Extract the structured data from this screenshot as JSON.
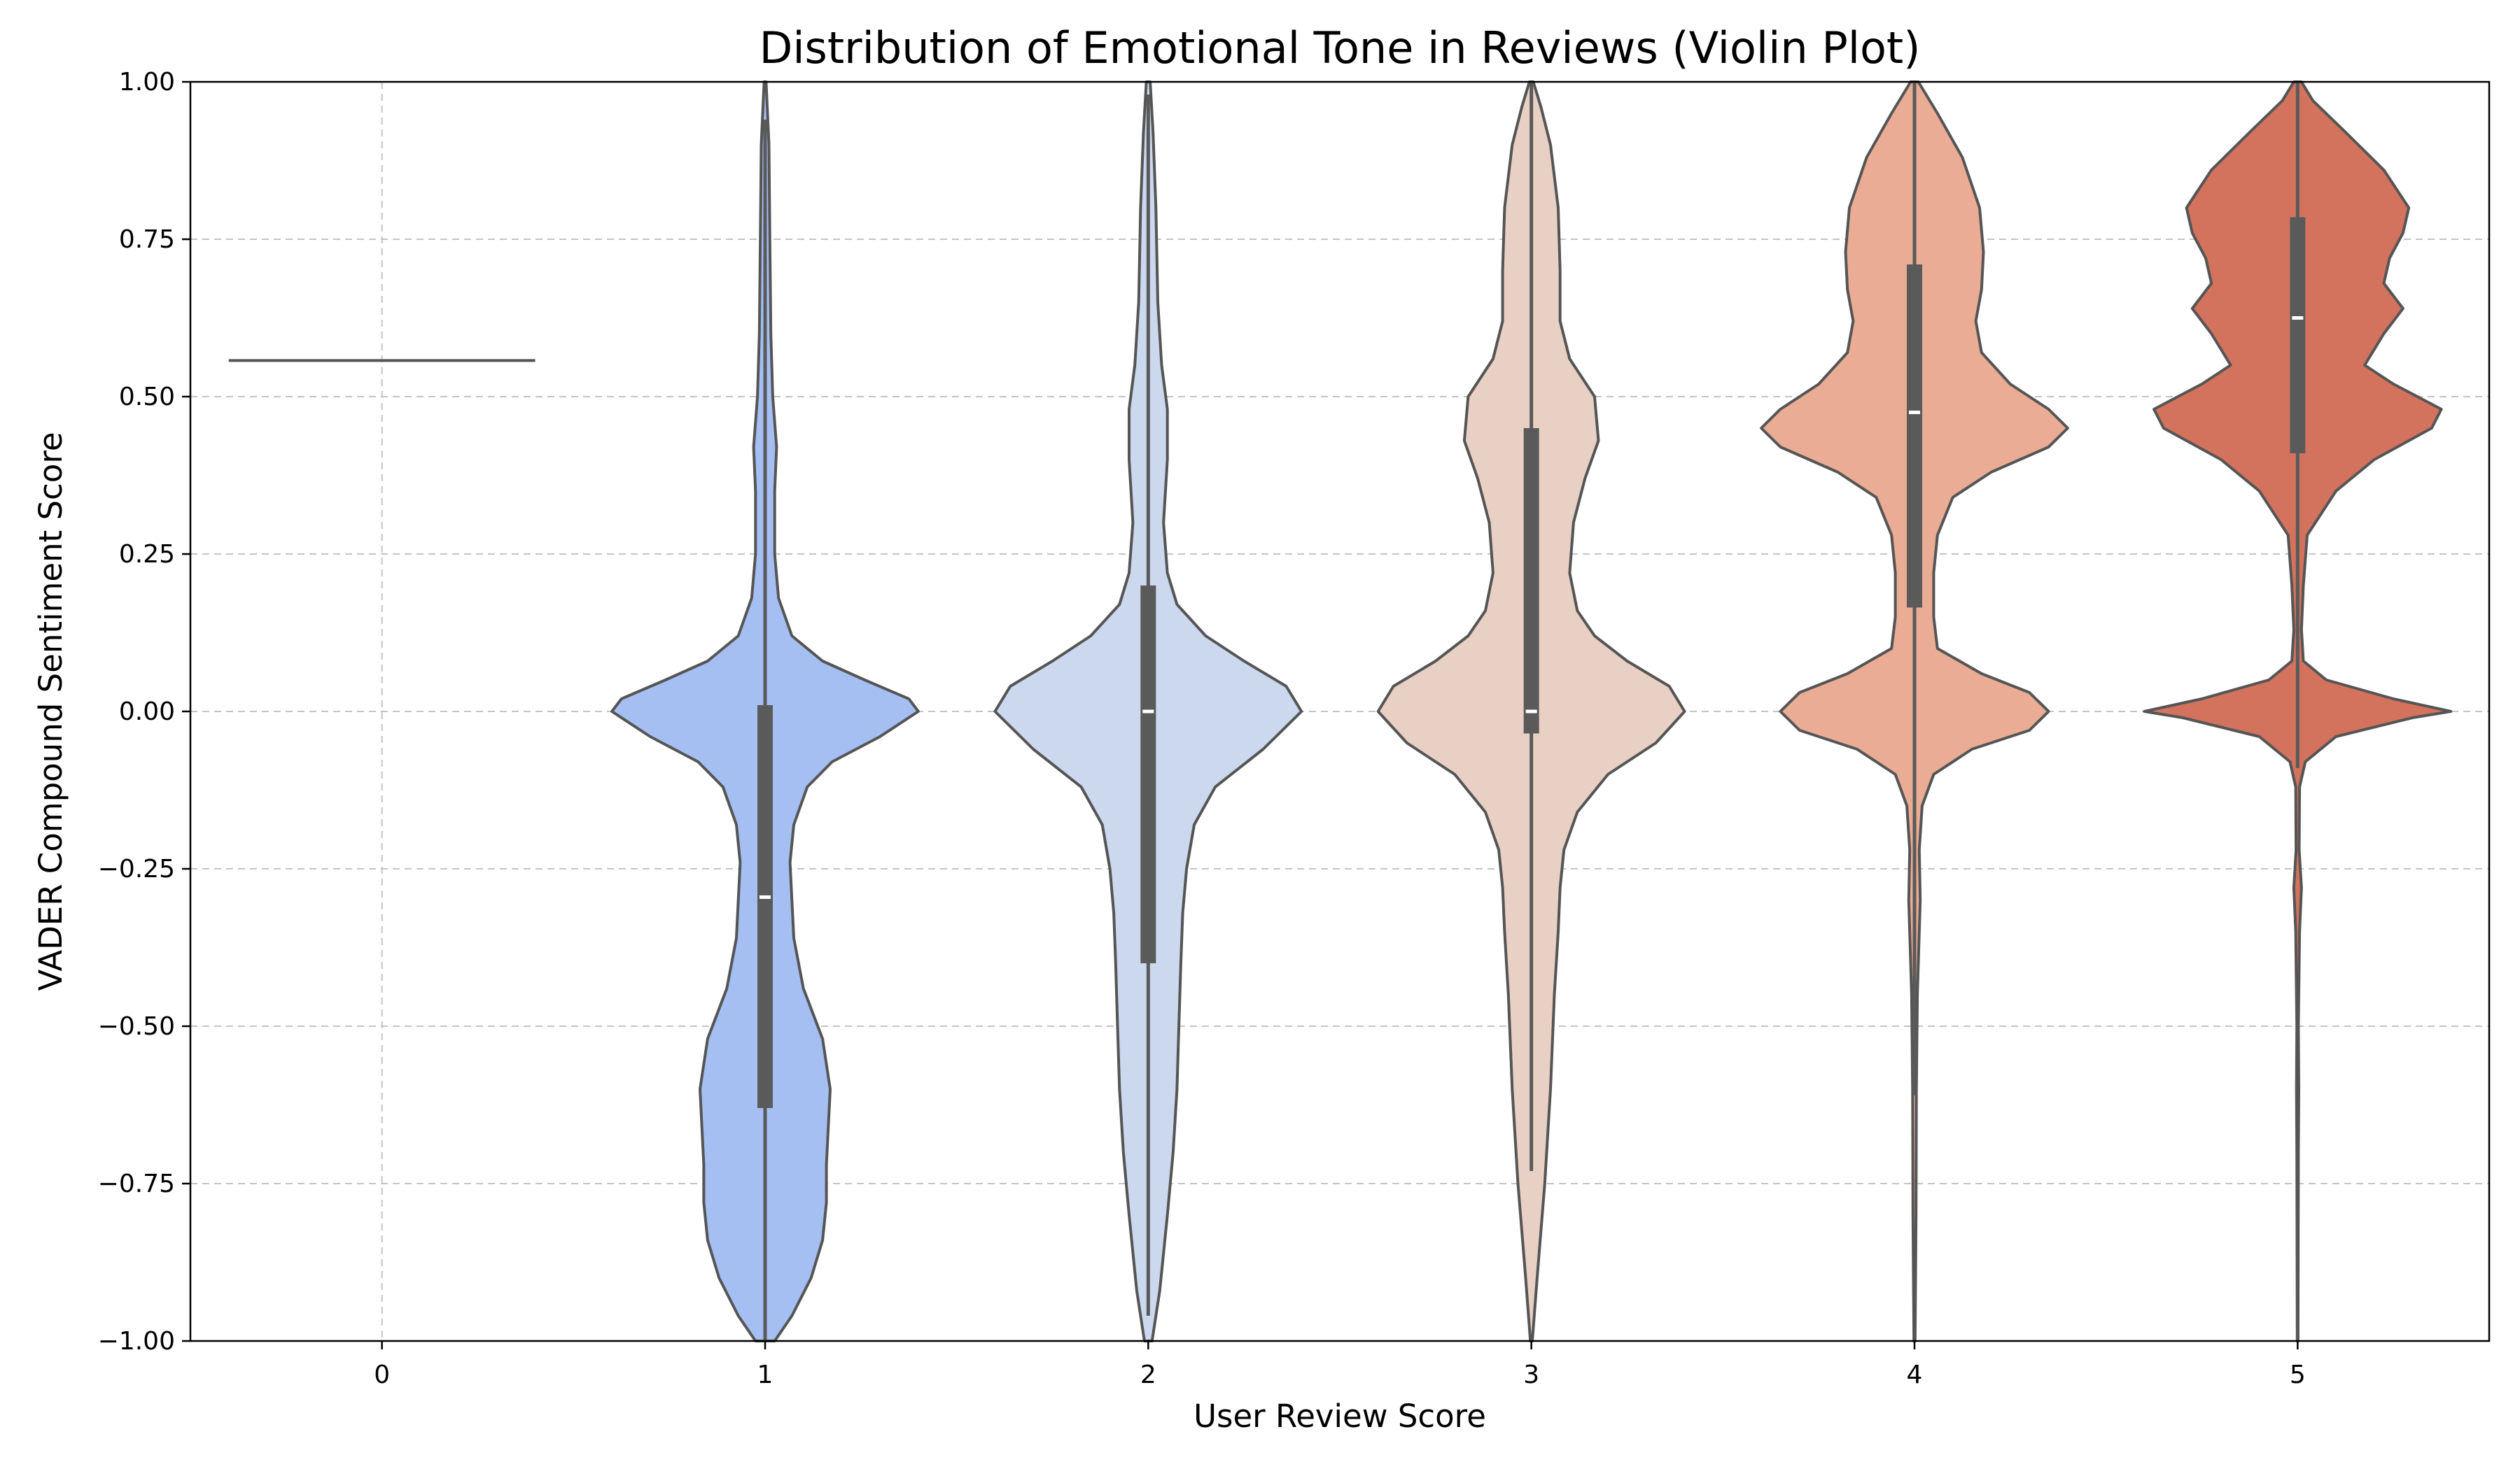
{
  "chart_data": {
    "type": "violin",
    "title": "Distribution of Emotional Tone in Reviews (Violin Plot)",
    "xlabel": "User Review Score",
    "ylabel": "VADER Compound Sentiment Score",
    "categories": [
      "0",
      "1",
      "2",
      "3",
      "4",
      "5"
    ],
    "ylim": [
      -1.0,
      1.0
    ],
    "yticks": [
      -1.0,
      -0.75,
      -0.5,
      -0.25,
      0.0,
      0.25,
      0.5,
      0.75,
      1.0
    ],
    "ytick_labels": [
      "−1.00",
      "−0.75",
      "−0.50",
      "−0.25",
      "0.00",
      "0.25",
      "0.50",
      "0.75",
      "1.00"
    ],
    "grid": true,
    "violins": [
      {
        "category": "0",
        "color": "#9ab8f0",
        "single_value": 0.5574,
        "box": null,
        "density": []
      },
      {
        "category": "1",
        "color": "#a5bff3",
        "box": {
          "q1": -0.63,
          "median": -0.295,
          "q3": 0.01,
          "whisker_low": -1.0,
          "whisker_high": 0.94
        },
        "density": [
          [
            -1.0,
            0.05
          ],
          [
            -0.96,
            0.14
          ],
          [
            -0.9,
            0.24
          ],
          [
            -0.84,
            0.3
          ],
          [
            -0.78,
            0.32
          ],
          [
            -0.72,
            0.32
          ],
          [
            -0.66,
            0.33
          ],
          [
            -0.6,
            0.34
          ],
          [
            -0.52,
            0.3
          ],
          [
            -0.44,
            0.2
          ],
          [
            -0.36,
            0.15
          ],
          [
            -0.3,
            0.14
          ],
          [
            -0.24,
            0.13
          ],
          [
            -0.18,
            0.15
          ],
          [
            -0.12,
            0.22
          ],
          [
            -0.08,
            0.35
          ],
          [
            -0.04,
            0.6
          ],
          [
            0.0,
            0.8
          ],
          [
            0.02,
            0.75
          ],
          [
            0.05,
            0.52
          ],
          [
            0.08,
            0.3
          ],
          [
            0.12,
            0.14
          ],
          [
            0.18,
            0.07
          ],
          [
            0.25,
            0.05
          ],
          [
            0.35,
            0.05
          ],
          [
            0.42,
            0.06
          ],
          [
            0.5,
            0.04
          ],
          [
            0.6,
            0.03
          ],
          [
            0.75,
            0.025
          ],
          [
            0.9,
            0.02
          ],
          [
            1.0,
            0.005
          ]
        ]
      },
      {
        "category": "2",
        "color": "#cbd8ed",
        "box": {
          "q1": -0.4,
          "median": 0.0,
          "q3": 0.2,
          "whisker_low": -0.96,
          "whisker_high": 0.98
        },
        "density": [
          [
            -1.0,
            0.02
          ],
          [
            -0.92,
            0.06
          ],
          [
            -0.8,
            0.1
          ],
          [
            -0.7,
            0.13
          ],
          [
            -0.6,
            0.15
          ],
          [
            -0.5,
            0.16
          ],
          [
            -0.4,
            0.17
          ],
          [
            -0.32,
            0.18
          ],
          [
            -0.25,
            0.2
          ],
          [
            -0.18,
            0.24
          ],
          [
            -0.12,
            0.35
          ],
          [
            -0.06,
            0.6
          ],
          [
            0.0,
            0.8
          ],
          [
            0.04,
            0.72
          ],
          [
            0.08,
            0.5
          ],
          [
            0.12,
            0.3
          ],
          [
            0.17,
            0.15
          ],
          [
            0.22,
            0.1
          ],
          [
            0.3,
            0.08
          ],
          [
            0.4,
            0.1
          ],
          [
            0.48,
            0.1
          ],
          [
            0.55,
            0.07
          ],
          [
            0.65,
            0.05
          ],
          [
            0.8,
            0.04
          ],
          [
            0.92,
            0.025
          ],
          [
            1.0,
            0.01
          ]
        ]
      },
      {
        "category": "3",
        "color": "#e8d0c4",
        "box": {
          "q1": -0.035,
          "median": 0.0,
          "q3": 0.45,
          "whisker_low": -0.73,
          "whisker_high": 1.0
        },
        "density": [
          [
            -1.0,
            0.005
          ],
          [
            -0.9,
            0.03
          ],
          [
            -0.75,
            0.07
          ],
          [
            -0.6,
            0.1
          ],
          [
            -0.45,
            0.12
          ],
          [
            -0.35,
            0.14
          ],
          [
            -0.28,
            0.15
          ],
          [
            -0.22,
            0.17
          ],
          [
            -0.16,
            0.24
          ],
          [
            -0.1,
            0.4
          ],
          [
            -0.05,
            0.65
          ],
          [
            0.0,
            0.8
          ],
          [
            0.04,
            0.72
          ],
          [
            0.08,
            0.5
          ],
          [
            0.12,
            0.33
          ],
          [
            0.16,
            0.24
          ],
          [
            0.22,
            0.2
          ],
          [
            0.3,
            0.22
          ],
          [
            0.37,
            0.28
          ],
          [
            0.43,
            0.35
          ],
          [
            0.5,
            0.33
          ],
          [
            0.56,
            0.2
          ],
          [
            0.62,
            0.15
          ],
          [
            0.7,
            0.15
          ],
          [
            0.8,
            0.14
          ],
          [
            0.9,
            0.1
          ],
          [
            0.96,
            0.05
          ],
          [
            1.0,
            0.01
          ]
        ]
      },
      {
        "category": "4",
        "color": "#eaac94",
        "box": {
          "q1": 0.165,
          "median": 0.475,
          "q3": 0.71,
          "whisker_low": -0.61,
          "whisker_high": 1.0
        },
        "density": [
          [
            -1.0,
            0.003
          ],
          [
            -0.8,
            0.008
          ],
          [
            -0.6,
            0.01
          ],
          [
            -0.45,
            0.015
          ],
          [
            -0.3,
            0.03
          ],
          [
            -0.22,
            0.025
          ],
          [
            -0.15,
            0.04
          ],
          [
            -0.1,
            0.1
          ],
          [
            -0.06,
            0.3
          ],
          [
            -0.03,
            0.6
          ],
          [
            0.0,
            0.7
          ],
          [
            0.03,
            0.6
          ],
          [
            0.06,
            0.35
          ],
          [
            0.1,
            0.12
          ],
          [
            0.15,
            0.1
          ],
          [
            0.22,
            0.1
          ],
          [
            0.28,
            0.12
          ],
          [
            0.34,
            0.2
          ],
          [
            0.38,
            0.4
          ],
          [
            0.42,
            0.7
          ],
          [
            0.45,
            0.8
          ],
          [
            0.48,
            0.7
          ],
          [
            0.52,
            0.5
          ],
          [
            0.57,
            0.35
          ],
          [
            0.62,
            0.32
          ],
          [
            0.67,
            0.35
          ],
          [
            0.73,
            0.36
          ],
          [
            0.8,
            0.34
          ],
          [
            0.88,
            0.25
          ],
          [
            0.95,
            0.12
          ],
          [
            1.0,
            0.02
          ]
        ]
      },
      {
        "category": "5",
        "color": "#d4735d",
        "box": {
          "q1": 0.41,
          "median": 0.625,
          "q3": 0.785,
          "whisker_low": -0.09,
          "whisker_high": 1.0
        },
        "density": [
          [
            -1.0,
            0.002
          ],
          [
            -0.7,
            0.004
          ],
          [
            -0.6,
            0.006
          ],
          [
            -0.5,
            0.004
          ],
          [
            -0.35,
            0.01
          ],
          [
            -0.28,
            0.02
          ],
          [
            -0.22,
            0.008
          ],
          [
            -0.12,
            0.01
          ],
          [
            -0.08,
            0.04
          ],
          [
            -0.04,
            0.2
          ],
          [
            -0.01,
            0.6
          ],
          [
            0.0,
            0.8
          ],
          [
            0.02,
            0.5
          ],
          [
            0.05,
            0.15
          ],
          [
            0.08,
            0.03
          ],
          [
            0.13,
            0.02
          ],
          [
            0.2,
            0.03
          ],
          [
            0.28,
            0.05
          ],
          [
            0.35,
            0.2
          ],
          [
            0.4,
            0.4
          ],
          [
            0.45,
            0.7
          ],
          [
            0.48,
            0.75
          ],
          [
            0.52,
            0.5
          ],
          [
            0.55,
            0.35
          ],
          [
            0.6,
            0.45
          ],
          [
            0.64,
            0.55
          ],
          [
            0.68,
            0.45
          ],
          [
            0.72,
            0.48
          ],
          [
            0.76,
            0.55
          ],
          [
            0.8,
            0.58
          ],
          [
            0.86,
            0.45
          ],
          [
            0.92,
            0.25
          ],
          [
            0.97,
            0.08
          ],
          [
            1.0,
            0.02
          ]
        ]
      }
    ]
  }
}
